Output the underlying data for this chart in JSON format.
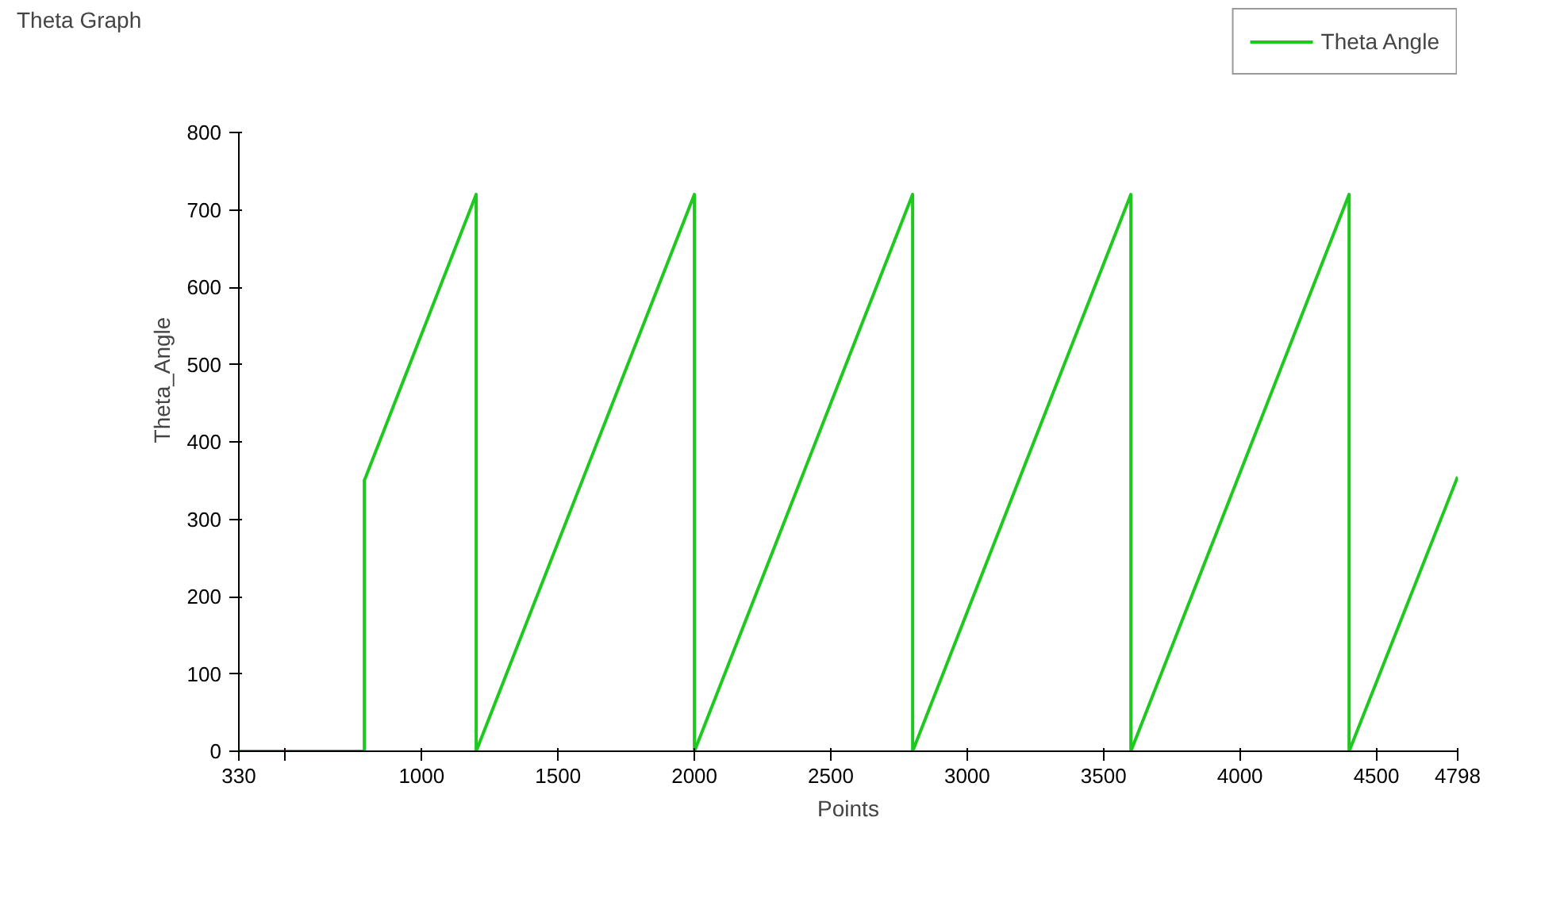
{
  "chart_data": {
    "type": "line",
    "title": "Theta Graph",
    "xlabel": "Points",
    "ylabel": "Theta_Angle",
    "series": [
      {
        "name": "Theta Angle",
        "color": "#1ec81e",
        "x": [
          330,
          790,
          790,
          1200,
          1200,
          2000,
          2000,
          2800,
          2800,
          3600,
          3600,
          4400,
          4400,
          4798
        ],
        "values": [
          0,
          0,
          350,
          720,
          0,
          720,
          0,
          720,
          0,
          720,
          0,
          720,
          0,
          355
        ]
      }
    ],
    "xlim": [
      330,
      4798
    ],
    "ylim": [
      0,
      800
    ],
    "xticks": [
      330,
      {
        "value": 500,
        "label": null
      },
      1000,
      1500,
      2000,
      2500,
      3000,
      3500,
      4000,
      4500,
      4798
    ],
    "yticks": [
      0,
      100,
      200,
      300,
      400,
      500,
      600,
      700,
      800
    ],
    "grid": false,
    "legend": "top right",
    "marker": "none",
    "line_style": "solid"
  }
}
